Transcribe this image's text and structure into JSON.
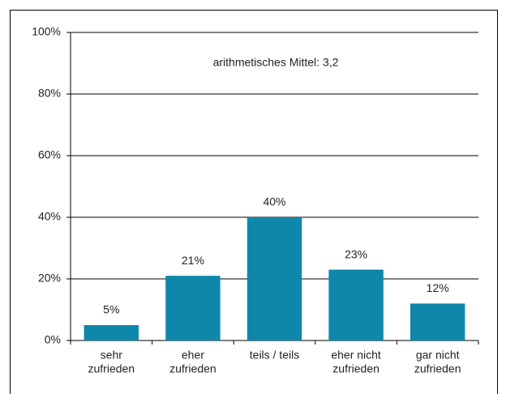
{
  "chart_data": {
    "type": "bar",
    "annotation": "arithmetisches Mittel: 3,2",
    "categories": [
      [
        "sehr",
        "zufrieden"
      ],
      [
        "eher",
        "zufrieden"
      ],
      [
        "teils / teils"
      ],
      [
        "eher nicht",
        "zufrieden"
      ],
      [
        "gar nicht",
        "zufrieden"
      ]
    ],
    "values": [
      5,
      21,
      40,
      23,
      12
    ],
    "value_labels": [
      "5%",
      "21%",
      "40%",
      "23%",
      "12%"
    ],
    "color": "#0f87aa",
    "ylim": [
      0,
      100
    ],
    "yticks": [
      {
        "value": 0,
        "label": "0%"
      },
      {
        "value": 20,
        "label": "20%"
      },
      {
        "value": 40,
        "label": "40%"
      },
      {
        "value": 60,
        "label": "60%"
      },
      {
        "value": 80,
        "label": "80%"
      },
      {
        "value": 100,
        "label": "100%"
      }
    ],
    "grid": true
  }
}
